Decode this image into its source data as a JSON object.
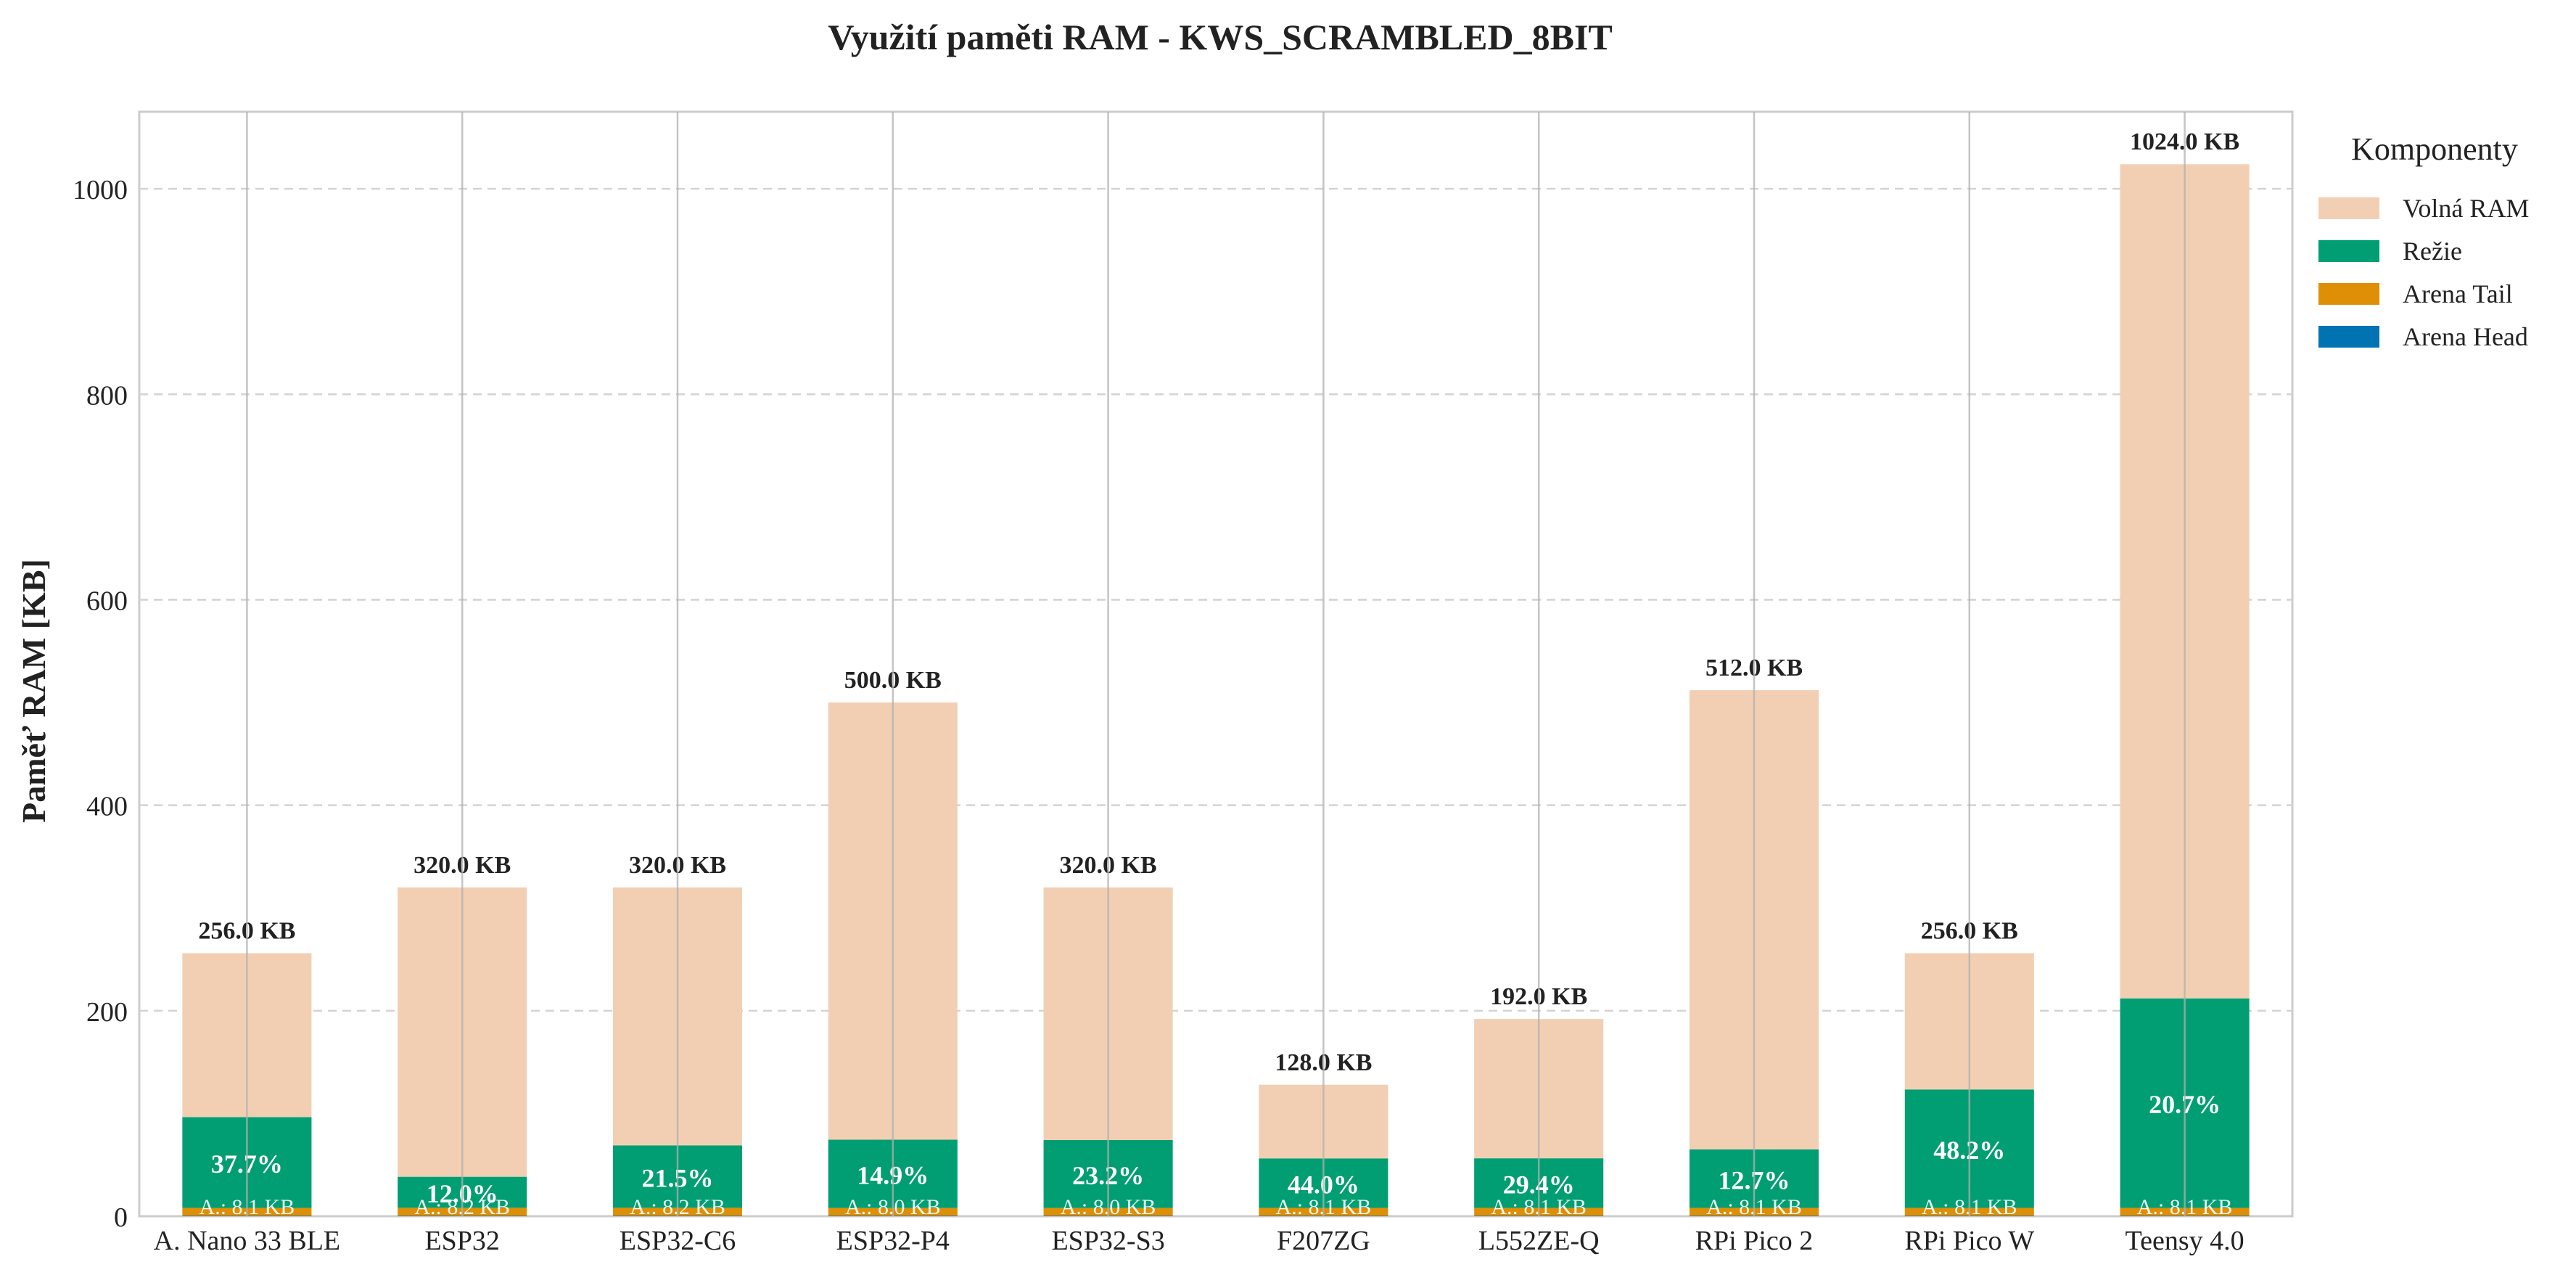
{
  "chart_data": {
    "type": "bar",
    "title": "Využití paměti RAM - KWS_SCRAMBLED_8BIT",
    "xlabel": "",
    "ylabel": "Paměť RAM [KB]",
    "ylim": [
      0,
      1075
    ],
    "yticks": [
      0,
      200,
      400,
      600,
      800,
      1000
    ],
    "grid": true,
    "categories": [
      "A. Nano 33 BLE",
      "ESP32",
      "ESP32-C6",
      "ESP32-P4",
      "ESP32-S3",
      "F207ZG",
      "L552ZE-Q",
      "RPi Pico 2",
      "RPi Pico W",
      "Teensy 4.0"
    ],
    "totals": [
      256.0,
      320.0,
      320.0,
      500.0,
      320.0,
      128.0,
      192.0,
      512.0,
      256.0,
      1024.0
    ],
    "total_labels": [
      "256.0 KB",
      "320.0 KB",
      "320.0 KB",
      "500.0 KB",
      "320.0 KB",
      "128.0 KB",
      "192.0 KB",
      "512.0 KB",
      "256.0 KB",
      "1024.0 KB"
    ],
    "usage_percent_labels": [
      "37.7%",
      "12.0%",
      "21.5%",
      "14.9%",
      "23.2%",
      "44.0%",
      "29.4%",
      "12.7%",
      "48.2%",
      "20.7%"
    ],
    "arena_labels": [
      "A.: 8.1 KB",
      "A.: 8.2 KB",
      "A.: 8.2 KB",
      "A.: 8.0 KB",
      "A.: 8.0 KB",
      "A.: 8.1 KB",
      "A.: 8.1 KB",
      "A.: 8.1 KB",
      "A.: 8.1 KB",
      "A.: 8.1 KB"
    ],
    "series": [
      {
        "name": "Arena Head",
        "color": "#0173b2",
        "values": [
          0.5,
          0.5,
          0.5,
          0.5,
          0.5,
          0.5,
          0.5,
          0.5,
          0.5,
          0.5
        ]
      },
      {
        "name": "Arena Tail",
        "color": "#de8f05",
        "values": [
          7.6,
          7.7,
          7.7,
          7.5,
          7.5,
          7.6,
          7.6,
          7.6,
          7.6,
          7.6
        ]
      },
      {
        "name": "Režie",
        "color": "#029e73",
        "values": [
          88.4,
          30.2,
          60.8,
          66.5,
          66.2,
          48.2,
          48.3,
          56.9,
          115.3,
          203.9
        ]
      },
      {
        "name": "Volná RAM",
        "color": "#f2cfb3",
        "values": [
          159.5,
          281.6,
          251.0,
          425.5,
          245.8,
          71.7,
          135.6,
          447.0,
          132.6,
          811.9
        ]
      }
    ],
    "legend": {
      "title": "Komponenty",
      "placement": "outside-right-top",
      "order": [
        "Volná RAM",
        "Režie",
        "Arena Tail",
        "Arena Head"
      ]
    }
  }
}
